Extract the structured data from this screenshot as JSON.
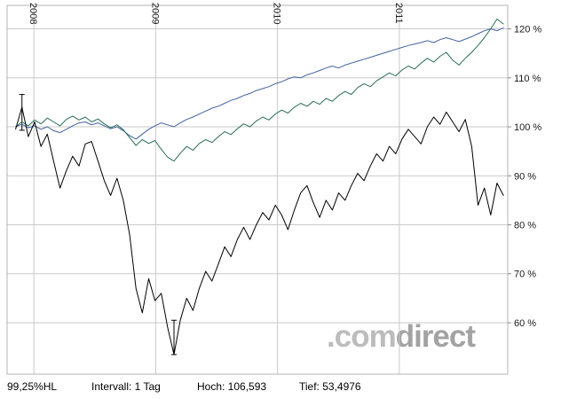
{
  "page": {
    "background": "#ffffff"
  },
  "watermark": {
    "prefix": ".com",
    "suffix": "direct",
    "prefix_color": "#bcbcbc",
    "suffix_color": "#a3a3a3"
  },
  "footer": {
    "value_hl": "99,25%HL",
    "interval": "Intervall: 1 Tag",
    "high": "Hoch: 106,593",
    "low": "Tief: 53,4976"
  },
  "chart_data": {
    "type": "line",
    "title": "",
    "grid": true,
    "grid_color": "#c9c9c9",
    "border_color": "#b4b4b4",
    "x_axis": {
      "min": 2007.78,
      "max": 2011.89,
      "ticks": [
        2008,
        2009,
        2010,
        2011
      ],
      "tick_labels": [
        "2008",
        "2009",
        "2010",
        "2011"
      ],
      "tick_label_position": "top",
      "tick_label_rotation": 90
    },
    "y_axis": {
      "min": 49.5,
      "max": 124.8,
      "ticks": [
        60,
        70,
        80,
        90,
        100,
        110,
        120
      ],
      "tick_labels": [
        "60 %",
        "70 %",
        "80 %",
        "90 %",
        "100 %",
        "110 %",
        "120 %"
      ],
      "side": "right",
      "unit": "%"
    },
    "interval": "1 Tag",
    "high": 106.593,
    "low": 53.4976,
    "x_start": 2007.85,
    "x_step": 0.052,
    "hl_markers": [
      {
        "x": 2007.902,
        "from": 99.3,
        "to": 106.593
      },
      {
        "x": 2009.15,
        "from": 53.4976,
        "to": 60.5
      }
    ],
    "series": [
      {
        "name": "benchmark-blue",
        "color": "#41629e",
        "width": 1,
        "values": [
          100,
          100.5,
          99.8,
          100.2,
          99.5,
          100,
          99.2,
          98.8,
          99.5,
          100.2,
          100.8,
          101,
          100.4,
          100.8,
          100.2,
          99.6,
          100,
          99.2,
          98.2,
          97.5,
          98.5,
          99.5,
          100.2,
          100.8,
          100.4,
          100,
          100.8,
          101.5,
          102,
          102.6,
          103.2,
          103.8,
          104.2,
          104.8,
          105.4,
          105.8,
          106.4,
          106.8,
          107.4,
          107.8,
          108.2,
          108.8,
          109.2,
          109.8,
          110.2,
          110,
          110.6,
          111,
          111.5,
          112,
          112.4,
          112,
          112.6,
          113,
          113.4,
          113.8,
          114.2,
          114.6,
          115,
          115.4,
          115.8,
          116.2,
          116.6,
          116.9,
          117.2,
          117.6,
          117.2,
          117.8,
          118.2,
          117.8,
          117.4,
          117.9,
          118.4,
          119,
          119.6,
          120,
          119.6,
          120.2
        ]
      },
      {
        "name": "benchmark-green",
        "color": "#2c6e55",
        "width": 1,
        "values": [
          100,
          101,
          100.2,
          101.4,
          100.6,
          101.8,
          101,
          100.2,
          101.5,
          102.2,
          101.4,
          102,
          101,
          101.6,
          100.6,
          99.8,
          100.4,
          99.4,
          97.8,
          96.2,
          97.4,
          96.6,
          97.2,
          95.4,
          93.8,
          93,
          94.6,
          96,
          95.2,
          96.6,
          97.4,
          96.8,
          98,
          99,
          98.4,
          99.6,
          100.6,
          100,
          101.2,
          102,
          101.4,
          102.6,
          103.4,
          102.8,
          104,
          104.8,
          104.2,
          105.2,
          104.6,
          105.8,
          105.2,
          106.4,
          107.2,
          106.6,
          108,
          108.8,
          108.2,
          109.4,
          110.2,
          111,
          110.4,
          111.6,
          112.4,
          111.8,
          113,
          114,
          113.2,
          114.4,
          115.2,
          113.6,
          112.6,
          114,
          115.2,
          116.6,
          118.2,
          120,
          122,
          121
        ]
      },
      {
        "name": "instrument-black",
        "color": "#000000",
        "width": 1,
        "values": [
          99.5,
          104,
          98,
          101,
          96,
          98.5,
          93,
          87.5,
          91,
          94,
          92,
          96.5,
          97,
          93,
          89,
          86,
          89.5,
          85,
          78,
          67,
          62,
          69,
          64.5,
          66,
          59,
          53.5,
          60.5,
          65,
          62.5,
          67,
          70.5,
          68.5,
          72,
          75.5,
          73.5,
          77,
          79.5,
          77,
          80,
          82.5,
          81,
          84,
          82,
          79,
          83,
          86.5,
          88,
          84.5,
          81.5,
          85,
          83,
          86.5,
          85,
          88,
          90.5,
          89,
          92,
          94.5,
          93,
          96,
          94.5,
          97.5,
          99.5,
          98,
          96.5,
          100,
          102,
          100.5,
          103,
          101,
          99,
          101.5,
          96,
          84,
          87.5,
          82,
          88.5,
          86
        ]
      }
    ]
  }
}
